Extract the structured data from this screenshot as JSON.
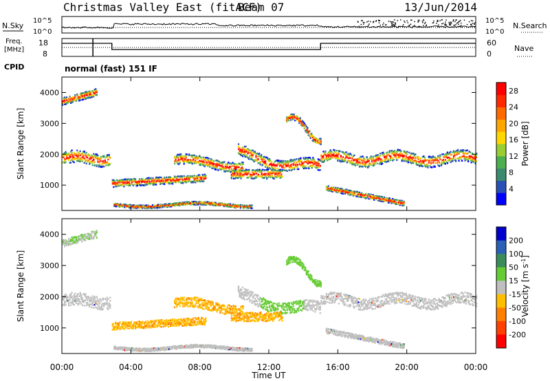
{
  "header": {
    "title": "Christmas Valley East (fitACF)",
    "beam": "Beam 07",
    "date": "13/Jun/2014"
  },
  "nsky_panel": {
    "left_label": "N.Sky",
    "right_label": "N.Search",
    "left_ticks": [
      "10^5",
      "10^0"
    ],
    "right_ticks": [
      "10^5",
      "10^0"
    ]
  },
  "freq_panel": {
    "left_label_line1": "Freq.",
    "left_label_line2": "[MHz]",
    "right_label": "Nave",
    "left_ticks": [
      "18",
      "8"
    ],
    "right_ticks": [
      "60",
      "0"
    ]
  },
  "cpid": {
    "label": "CPID",
    "text": "normal (fast) 151 IF"
  },
  "colors": {
    "power": [
      "#0000ff",
      "#2a4fb5",
      "#3b8c6e",
      "#4caf50",
      "#9acd32",
      "#ffd700",
      "#ffa500",
      "#ff6a00",
      "#ff2a00",
      "#ff0000"
    ],
    "velocity": [
      "#0000cc",
      "#2a60b5",
      "#3b8c5a",
      "#66cc33",
      "#bfbfbf",
      "#ffbf00",
      "#ff8000",
      "#ff4000",
      "#ff0000"
    ]
  },
  "chart_data": [
    {
      "type": "heatmap",
      "name": "power",
      "ylabel": "Slant Range [km]",
      "xlim_hours": [
        0,
        24
      ],
      "ylim": [
        180,
        4500
      ],
      "yticks": [
        1000,
        2000,
        3000,
        4000
      ],
      "colorbar": {
        "label": "Power [dB]",
        "ticks": [
          4,
          8,
          12,
          16,
          20,
          24,
          28
        ],
        "range": [
          0,
          30
        ]
      }
    },
    {
      "type": "heatmap",
      "name": "velocity",
      "ylabel": "Slant Range [km]",
      "xlabel": "Time UT",
      "xticks": [
        "00:00",
        "04:00",
        "08:00",
        "12:00",
        "16:00",
        "20:00",
        "00:00"
      ],
      "xlim_hours": [
        0,
        24
      ],
      "ylim": [
        180,
        4500
      ],
      "yticks": [
        1000,
        2000,
        3000,
        4000
      ],
      "colorbar": {
        "label": "Velocity [m s^-1]",
        "ticks": [
          "200",
          "100",
          "50",
          "15",
          "-15",
          "-50",
          "-100",
          "-200"
        ]
      }
    }
  ]
}
